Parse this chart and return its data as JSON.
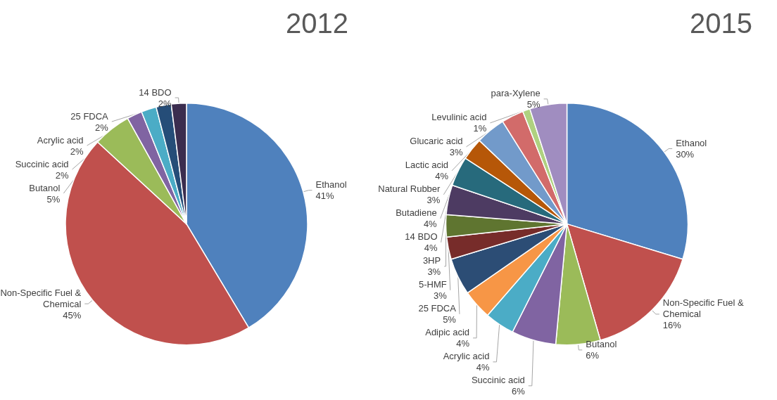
{
  "chart_data": [
    {
      "type": "pie",
      "title": "2012",
      "categories": [
        "Ethanol",
        "Non-Specific Fuel & Chemical",
        "Butanol",
        "Succinic acid",
        "Acrylic acid",
        "25 FDCA",
        "14 BDO"
      ],
      "values": [
        41,
        45,
        5,
        2,
        2,
        2,
        2
      ],
      "value_labels": [
        "41%",
        "45%",
        "5%",
        "2%",
        "2%",
        "2%",
        "2%"
      ],
      "colors": [
        "#4f81bd",
        "#c0504d",
        "#9bbb59",
        "#8064a2",
        "#4bacc6",
        "#254d78",
        "#3b2d4f"
      ]
    },
    {
      "type": "pie",
      "title": "2015",
      "categories": [
        "Ethanol",
        "Non-Specific Fuel & Chemical",
        "Butanol",
        "Succinic acid",
        "Acrylic acid",
        "Adipic acid",
        "25 FDCA",
        "5-HMF",
        "3HP",
        "14 BDO",
        "Butadiene",
        "Natural Rubber",
        "Lactic acid",
        "Glucaric acid",
        "Levulinic acid",
        "para-Xylene"
      ],
      "values": [
        30,
        16,
        6,
        6,
        4,
        4,
        5,
        3,
        3,
        4,
        4,
        3,
        4,
        3,
        1,
        5
      ],
      "value_labels": [
        "30%",
        "16%",
        "6%",
        "6%",
        "4%",
        "4%",
        "5%",
        "3%",
        "3%",
        "4%",
        "4%",
        "3%",
        "4%",
        "3%",
        "1%",
        "5%"
      ],
      "colors": [
        "#4f81bd",
        "#c0504d",
        "#9bbb59",
        "#8064a2",
        "#4bacc6",
        "#f79646",
        "#2c4d75",
        "#772c2a",
        "#5f7530",
        "#4d3b62",
        "#276a7c",
        "#b65708",
        "#729aca",
        "#d26b6a",
        "#afd180",
        "#a08dc0"
      ]
    }
  ]
}
